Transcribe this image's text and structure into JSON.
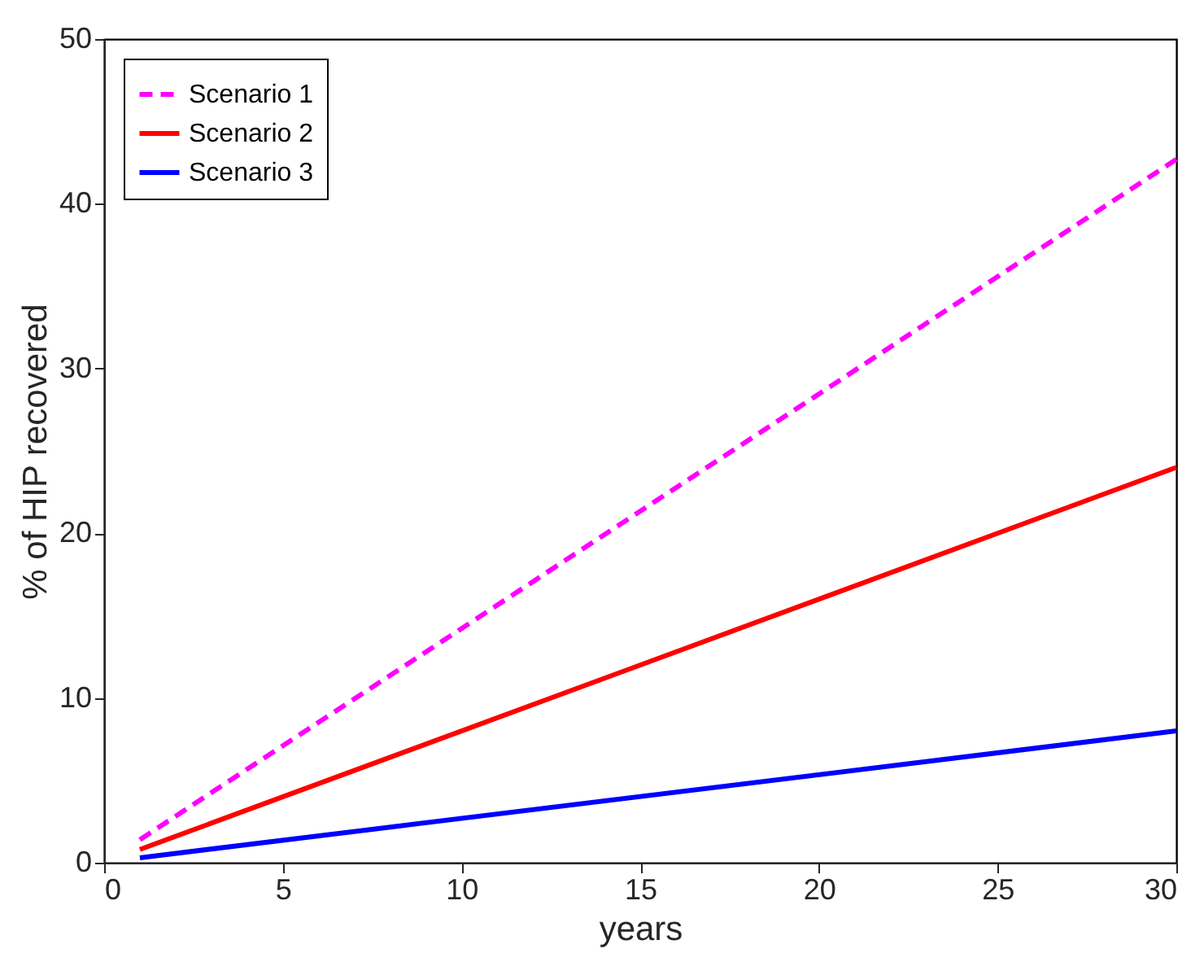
{
  "chart_data": {
    "type": "line",
    "xlabel": "years",
    "ylabel": "% of HIP recovered",
    "x": [
      1,
      30
    ],
    "series": [
      {
        "name": "Scenario 1",
        "color": "#ff00ff",
        "values": [
          1.4,
          42.7
        ],
        "line_style": "dashed"
      },
      {
        "name": "Scenario 2",
        "color": "#ff0000",
        "values": [
          0.8,
          24
        ],
        "line_style": "solid"
      },
      {
        "name": "Scenario 3",
        "color": "#0000ff",
        "values": [
          0.3,
          8
        ],
        "line_style": "solid"
      }
    ],
    "xlim": [
      0,
      30
    ],
    "xticks": [
      0,
      5,
      10,
      15,
      20,
      25,
      30
    ],
    "ylim": [
      0,
      50
    ],
    "yticks": [
      0,
      10,
      20,
      30,
      40,
      50
    ],
    "grid": false,
    "legend": "top left",
    "marker": "none"
  }
}
